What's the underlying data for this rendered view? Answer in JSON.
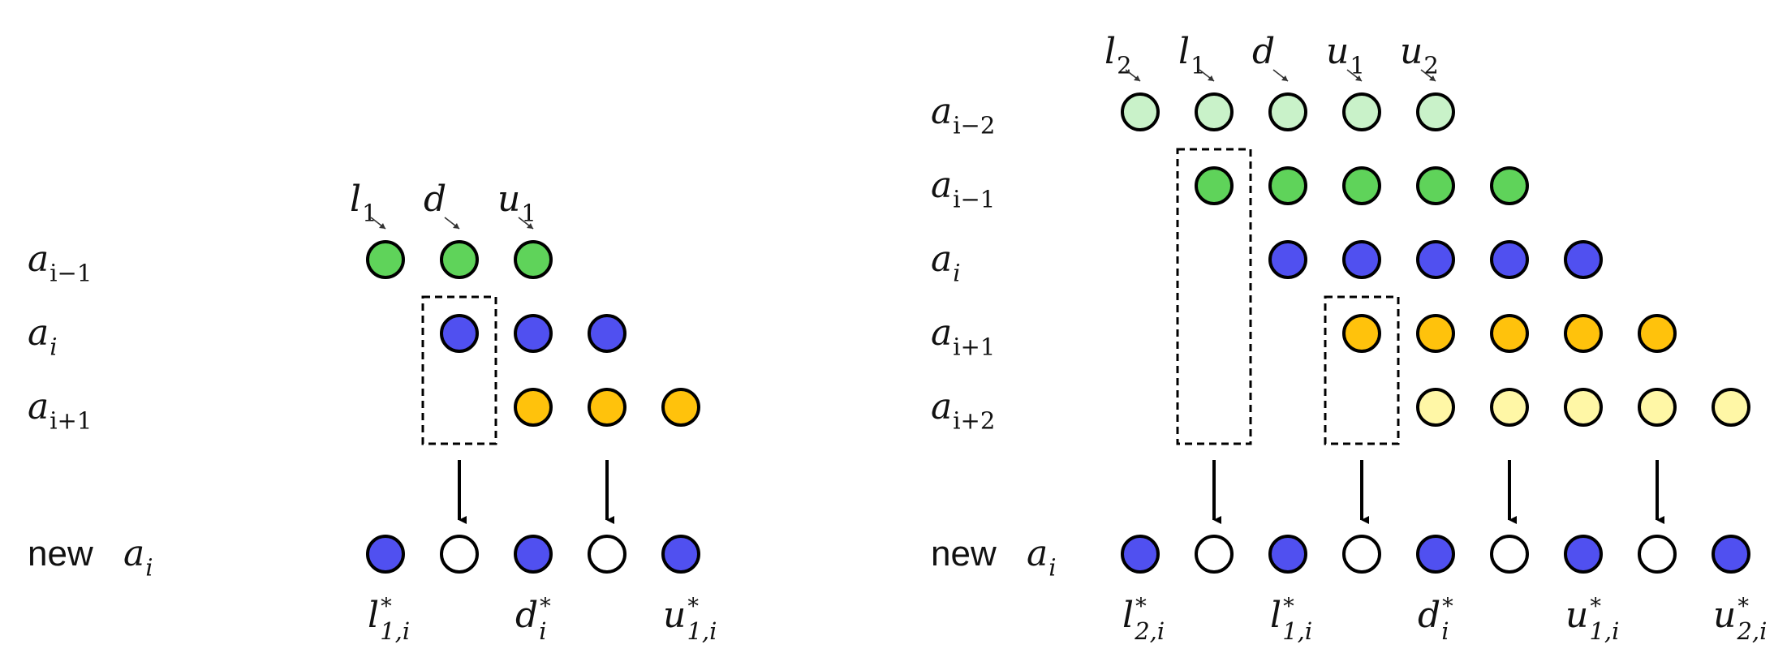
{
  "colors": {
    "light_green": "#c9f2c9",
    "green": "#5fd35a",
    "blue": "#5050f0",
    "orange": "#ffc20c",
    "light_yellow": "#fff7a6",
    "empty": "#ffffff",
    "outline": "#000000"
  },
  "left_panel": {
    "diag_labels": [
      {
        "base": "l",
        "sub": "1"
      },
      {
        "base": "d",
        "sub": ""
      },
      {
        "base": "u",
        "sub": "1"
      }
    ],
    "rows": [
      {
        "base": "a",
        "sub": "i−1",
        "cells": [
          "green",
          "green",
          "green",
          null,
          null
        ],
        "start": 0
      },
      {
        "base": "a",
        "sub": "i",
        "cells": [
          "blue",
          "blue",
          "blue"
        ],
        "start": 1
      },
      {
        "base": "a",
        "sub": "i+1",
        "cells": [
          "orange",
          "orange",
          "orange"
        ],
        "start": 2
      }
    ],
    "boxed_columns": [
      1,
      3
    ],
    "new_row": {
      "prefix": "new",
      "base": "a",
      "sub": "i",
      "cells": [
        "blue",
        "empty",
        "blue",
        "empty",
        "blue"
      ]
    },
    "bottom_labels": [
      {
        "col": 0,
        "base": "l",
        "sup": "*",
        "sub": "1,i"
      },
      {
        "col": 2,
        "base": "d",
        "sup": "*",
        "sub": "i"
      },
      {
        "col": 4,
        "base": "u",
        "sup": "*",
        "sub": "1,i"
      }
    ]
  },
  "right_panel": {
    "diag_labels": [
      {
        "base": "l",
        "sub": "2"
      },
      {
        "base": "l",
        "sub": "1"
      },
      {
        "base": "d",
        "sub": ""
      },
      {
        "base": "u",
        "sub": "1"
      },
      {
        "base": "u",
        "sub": "2"
      }
    ],
    "rows": [
      {
        "base": "a",
        "sub": "i−2",
        "cells": [
          "light_green",
          "light_green",
          "light_green",
          "light_green",
          "light_green"
        ],
        "start": 0
      },
      {
        "base": "a",
        "sub": "i−1",
        "cells": [
          "green",
          "green",
          "green",
          "green",
          "green"
        ],
        "start": 1
      },
      {
        "base": "a",
        "sub": "i",
        "cells": [
          "blue",
          "blue",
          "blue",
          "blue",
          "blue"
        ],
        "start": 2
      },
      {
        "base": "a",
        "sub": "i+1",
        "cells": [
          "orange",
          "orange",
          "orange",
          "orange",
          "orange"
        ],
        "start": 3
      },
      {
        "base": "a",
        "sub": "i+2",
        "cells": [
          "light_yellow",
          "light_yellow",
          "light_yellow",
          "light_yellow",
          "light_yellow"
        ],
        "start": 4
      }
    ],
    "boxed_columns": [
      1,
      3,
      5,
      7
    ],
    "new_row": {
      "prefix": "new",
      "base": "a",
      "sub": "i",
      "cells": [
        "blue",
        "empty",
        "blue",
        "empty",
        "blue",
        "empty",
        "blue",
        "empty",
        "blue"
      ]
    },
    "bottom_labels": [
      {
        "col": 0,
        "base": "l",
        "sup": "*",
        "sub": "2,i"
      },
      {
        "col": 2,
        "base": "l",
        "sup": "*",
        "sub": "1,i"
      },
      {
        "col": 4,
        "base": "d",
        "sup": "*",
        "sub": "i"
      },
      {
        "col": 6,
        "base": "u",
        "sup": "*",
        "sub": "1,i"
      },
      {
        "col": 8,
        "base": "u",
        "sup": "*",
        "sub": "2,i"
      }
    ]
  }
}
